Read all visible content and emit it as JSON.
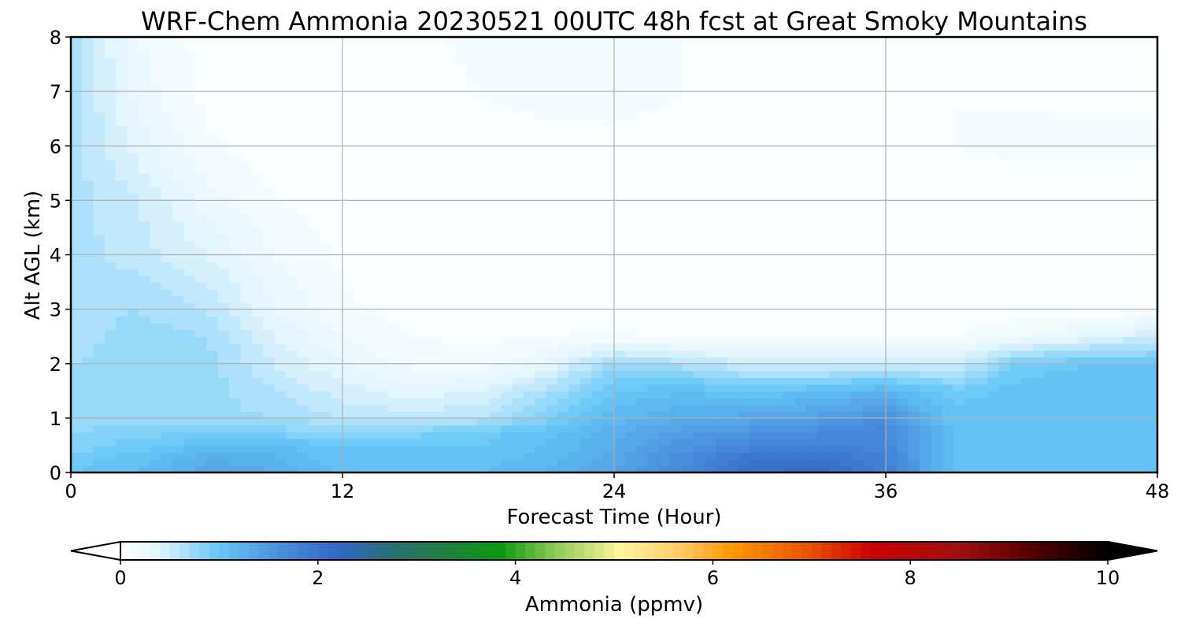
{
  "chart_data": {
    "type": "contour",
    "title": "WRF-Chem Ammonia  20230521 00UTC 48h fcst at Great Smoky Mountains",
    "xlabel": "Forecast Time (Hour)",
    "ylabel": "Alt AGL (km)",
    "xlim": [
      0,
      48
    ],
    "ylim": [
      0,
      8
    ],
    "xticks": [
      0,
      12,
      24,
      36,
      48
    ],
    "yticks": [
      0,
      1,
      2,
      3,
      4,
      5,
      6,
      7,
      8
    ],
    "grid": true,
    "colorbar": {
      "label": "Ammonia  (ppmv)",
      "orientation": "horizontal",
      "min": 0,
      "max": 10,
      "ticks": [
        0,
        2,
        4,
        6,
        8,
        10
      ],
      "extend": "both",
      "stops": [
        {
          "value": 0.0,
          "color": "#ffffff"
        },
        {
          "value": 0.4,
          "color": "#dff3fd"
        },
        {
          "value": 1.0,
          "color": "#66c6f8"
        },
        {
          "value": 1.6,
          "color": "#4a90dd"
        },
        {
          "value": 2.2,
          "color": "#3366c8"
        },
        {
          "value": 2.7,
          "color": "#2a6f7a"
        },
        {
          "value": 3.3,
          "color": "#1f8040"
        },
        {
          "value": 3.85,
          "color": "#0a9a10"
        },
        {
          "value": 4.4,
          "color": "#8ccc55"
        },
        {
          "value": 4.95,
          "color": "#eeee88"
        },
        {
          "value": 5.05,
          "color": "#fff59a"
        },
        {
          "value": 5.6,
          "color": "#ffd070"
        },
        {
          "value": 6.2,
          "color": "#ff9800"
        },
        {
          "value": 7.0,
          "color": "#e85000"
        },
        {
          "value": 7.6,
          "color": "#cc0000"
        },
        {
          "value": 8.5,
          "color": "#a01010"
        },
        {
          "value": 9.2,
          "color": "#5a0000"
        },
        {
          "value": 10.0,
          "color": "#000000"
        }
      ],
      "under_color": "#ffffff",
      "over_color": "#000000"
    },
    "times": [
      0,
      3,
      6,
      9,
      12,
      15,
      18,
      21,
      24,
      27,
      30,
      33,
      36,
      39,
      42,
      45,
      48
    ],
    "altitudes": [
      0,
      0.25,
      0.5,
      0.75,
      1.0,
      1.5,
      2.0,
      2.5,
      3.0,
      4.0,
      5.0,
      6.0,
      7.0,
      8.0
    ],
    "values": [
      [
        1.0,
        1.1,
        1.35,
        1.3,
        1.05,
        1.05,
        1.1,
        1.2,
        1.4,
        1.7,
        2.1,
        2.15,
        1.9,
        1.05,
        1.05,
        1.05,
        1.05
      ],
      [
        0.95,
        1.05,
        1.3,
        1.25,
        1.0,
        1.0,
        1.05,
        1.15,
        1.35,
        1.65,
        2.0,
        2.05,
        1.8,
        1.05,
        1.05,
        1.05,
        1.05
      ],
      [
        0.85,
        0.95,
        1.1,
        1.1,
        1.0,
        1.0,
        1.0,
        1.1,
        1.3,
        1.55,
        1.75,
        1.85,
        1.75,
        1.05,
        1.05,
        1.05,
        1.05
      ],
      [
        0.8,
        0.85,
        0.9,
        0.85,
        0.8,
        0.85,
        0.95,
        1.05,
        1.25,
        1.45,
        1.55,
        1.65,
        1.75,
        1.05,
        1.05,
        1.05,
        1.05
      ],
      [
        0.75,
        0.75,
        0.75,
        0.7,
        0.6,
        0.55,
        0.6,
        0.85,
        1.15,
        1.3,
        1.35,
        1.45,
        1.6,
        1.05,
        1.05,
        1.05,
        1.05
      ],
      [
        0.7,
        0.75,
        0.75,
        0.6,
        0.45,
        0.35,
        0.4,
        0.65,
        1.0,
        1.1,
        1.0,
        1.1,
        1.2,
        0.95,
        1.05,
        1.05,
        1.05
      ],
      [
        0.7,
        0.75,
        0.75,
        0.5,
        0.3,
        0.18,
        0.15,
        0.3,
        0.75,
        0.65,
        0.5,
        0.45,
        0.5,
        0.45,
        0.95,
        1.0,
        1.0
      ],
      [
        0.65,
        0.75,
        0.7,
        0.4,
        0.2,
        0.1,
        0.08,
        0.1,
        0.12,
        0.08,
        0.07,
        0.06,
        0.06,
        0.1,
        0.2,
        0.35,
        0.5
      ],
      [
        0.65,
        0.7,
        0.6,
        0.3,
        0.12,
        0.06,
        0.05,
        0.05,
        0.05,
        0.04,
        0.04,
        0.04,
        0.04,
        0.04,
        0.05,
        0.05,
        0.06
      ],
      [
        0.65,
        0.55,
        0.4,
        0.2,
        0.08,
        0.04,
        0.04,
        0.04,
        0.04,
        0.04,
        0.04,
        0.04,
        0.04,
        0.04,
        0.04,
        0.04,
        0.04
      ],
      [
        0.65,
        0.5,
        0.25,
        0.1,
        0.05,
        0.04,
        0.04,
        0.04,
        0.04,
        0.04,
        0.04,
        0.04,
        0.04,
        0.04,
        0.04,
        0.04,
        0.04
      ],
      [
        0.65,
        0.35,
        0.12,
        0.05,
        0.05,
        0.05,
        0.06,
        0.06,
        0.07,
        0.06,
        0.05,
        0.05,
        0.09,
        0.1,
        0.12,
        0.12,
        0.12
      ],
      [
        0.65,
        0.25,
        0.07,
        0.05,
        0.05,
        0.06,
        0.1,
        0.14,
        0.14,
        0.1,
        0.06,
        0.05,
        0.09,
        0.1,
        0.09,
        0.08,
        0.08
      ],
      [
        0.65,
        0.2,
        0.06,
        0.05,
        0.06,
        0.08,
        0.12,
        0.2,
        0.15,
        0.1,
        0.06,
        0.05,
        0.08,
        0.08,
        0.06,
        0.06,
        0.06
      ]
    ]
  }
}
